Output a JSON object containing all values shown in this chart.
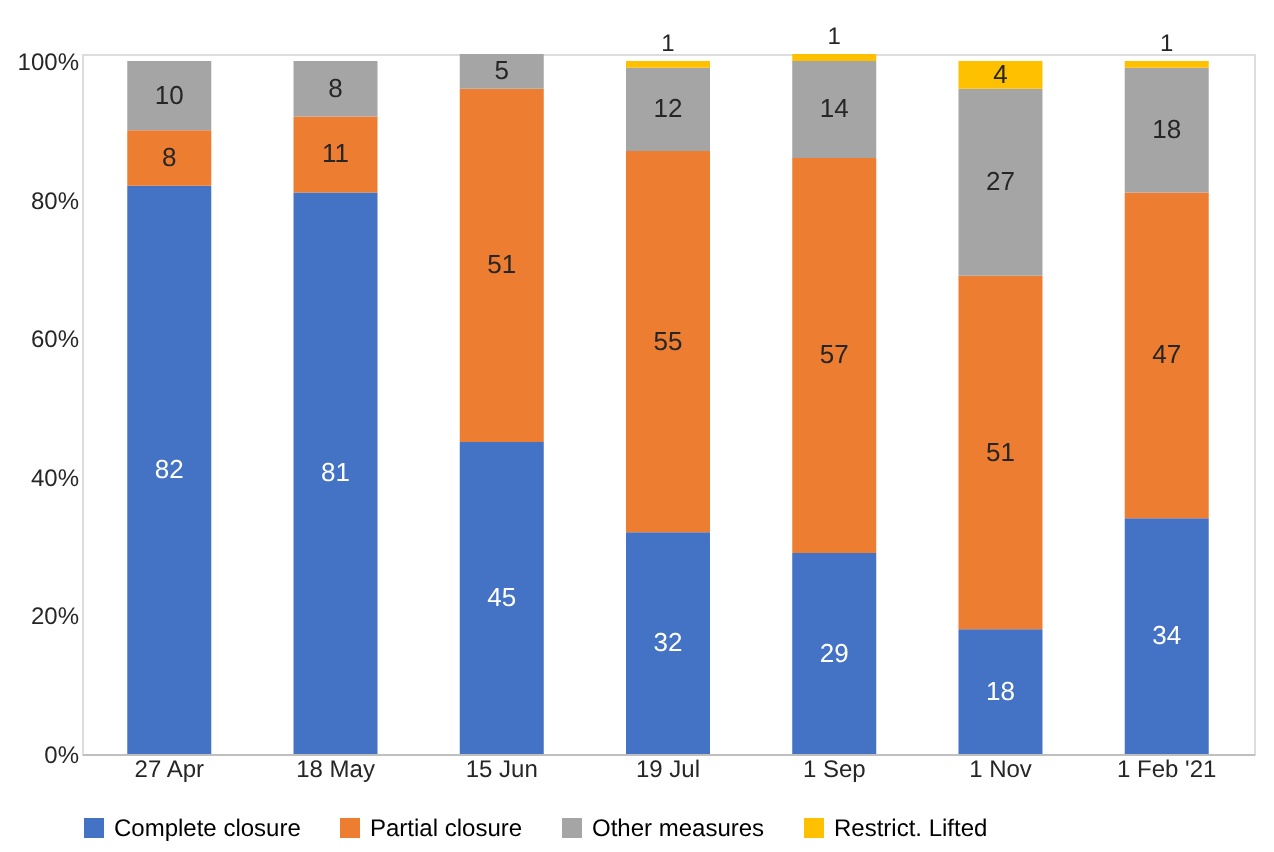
{
  "chart_data": {
    "type": "bar",
    "stacked": true,
    "categories": [
      "27 Apr",
      "18 May",
      "15 Jun",
      "19 Jul",
      "1 Sep",
      "1 Nov",
      "1 Feb '21"
    ],
    "series": [
      {
        "name": "Complete closure",
        "color": "#4472c4",
        "values": [
          82,
          81,
          45,
          32,
          29,
          18,
          34
        ]
      },
      {
        "name": "Partial closure",
        "color": "#ed7d31",
        "values": [
          8,
          11,
          51,
          55,
          57,
          51,
          47
        ]
      },
      {
        "name": "Other measures",
        "color": "#a5a5a5",
        "values": [
          10,
          8,
          5,
          12,
          14,
          27,
          18
        ]
      },
      {
        "name": "Restrict. Lifted",
        "color": "#ffc000",
        "values": [
          null,
          null,
          null,
          1,
          1,
          4,
          1
        ]
      }
    ],
    "ylim": [
      0,
      101
    ],
    "yticks": [
      {
        "value": 0,
        "label": "0%"
      },
      {
        "value": 20,
        "label": "20%"
      },
      {
        "value": 40,
        "label": "40%"
      },
      {
        "value": 60,
        "label": "60%"
      },
      {
        "value": 80,
        "label": "80%"
      },
      {
        "value": 100,
        "label": "100%"
      }
    ],
    "grid": false,
    "legend": "bottom",
    "data_labels": true
  }
}
